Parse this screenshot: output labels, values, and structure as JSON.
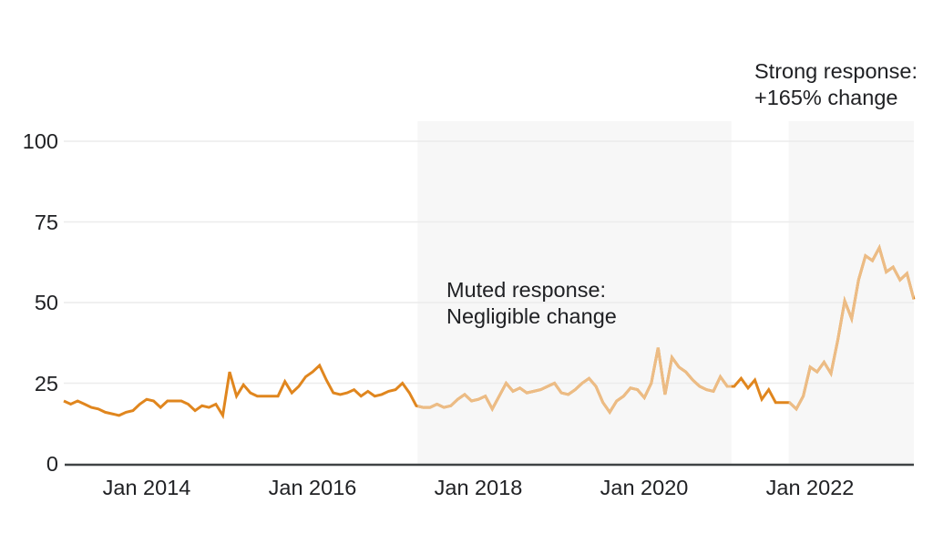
{
  "chart_data": {
    "type": "line",
    "title": "",
    "x_range": [
      "Jan 2013",
      "Apr 2023"
    ],
    "frequency": "monthly",
    "x_tick_labels": [
      "Jan 2014",
      "Jan 2016",
      "Jan 2018",
      "Jan 2020",
      "Jan 2022"
    ],
    "x_tick_month_indices": [
      12,
      36,
      60,
      84,
      108
    ],
    "y_ticks": [
      0,
      25,
      50,
      75,
      100
    ],
    "y_tick_labels": [
      "0",
      "25",
      "50",
      "75",
      "100"
    ],
    "ylim": [
      0,
      105
    ],
    "grid": true,
    "legend": "none",
    "series": [
      {
        "name": "interest-over-time",
        "values": [
          19.5,
          18.5,
          19.5,
          18.5,
          17.5,
          17,
          16,
          15.5,
          15,
          16,
          16.5,
          18.5,
          20,
          19.5,
          17.5,
          19.5,
          19.5,
          19.5,
          18.5,
          16.5,
          18,
          17.5,
          18.5,
          15,
          28.5,
          21,
          24.5,
          22,
          21,
          21,
          21,
          21,
          25.5,
          22,
          24,
          27,
          28.5,
          30.5,
          26,
          22,
          21.5,
          22,
          23,
          21,
          22.5,
          21,
          21.5,
          22.5,
          23,
          25,
          22,
          18,
          17.5,
          17.5,
          18.5,
          17.5,
          18,
          20,
          21.5,
          19.5,
          20,
          21,
          17,
          21,
          25,
          22.5,
          23.5,
          22,
          22.5,
          23,
          24,
          25,
          22,
          21.5,
          23,
          25,
          26.5,
          24,
          19,
          16,
          19.5,
          21,
          23.5,
          23,
          20.5,
          25,
          36,
          21.5,
          33,
          30,
          28.5,
          26,
          24,
          23,
          22.5,
          27,
          24,
          24,
          26.5,
          23.5,
          26,
          20,
          23,
          19,
          19,
          19,
          17,
          21,
          30,
          28.5,
          31.5,
          28,
          38.5,
          50.5,
          45,
          57,
          64.5,
          63,
          67,
          59.5,
          61,
          57,
          59,
          51
        ]
      }
    ],
    "regions": [
      {
        "name": "muted-response",
        "start_month_index": 51.2,
        "end_month_index": 96.6,
        "label_line1": "Muted response:",
        "label_line2": "Negligible change"
      },
      {
        "name": "strong-response",
        "start_month_index": 104.9,
        "end_month_index": 123,
        "label_line1": "Strong response:",
        "label_line2": "+165% change"
      }
    ],
    "colors": {
      "line": "#E0861E",
      "line_in_region": "#ECBC85",
      "region_fill": "#F7F7F7",
      "gridline": "#ECECEC",
      "axis_line": "#3F4345",
      "text": "#202124"
    }
  },
  "annotations": {
    "muted": {
      "line1": "Muted response:",
      "line2": "Negligible change"
    },
    "strong": {
      "line1": "Strong response:",
      "line2": "+165% change"
    }
  }
}
